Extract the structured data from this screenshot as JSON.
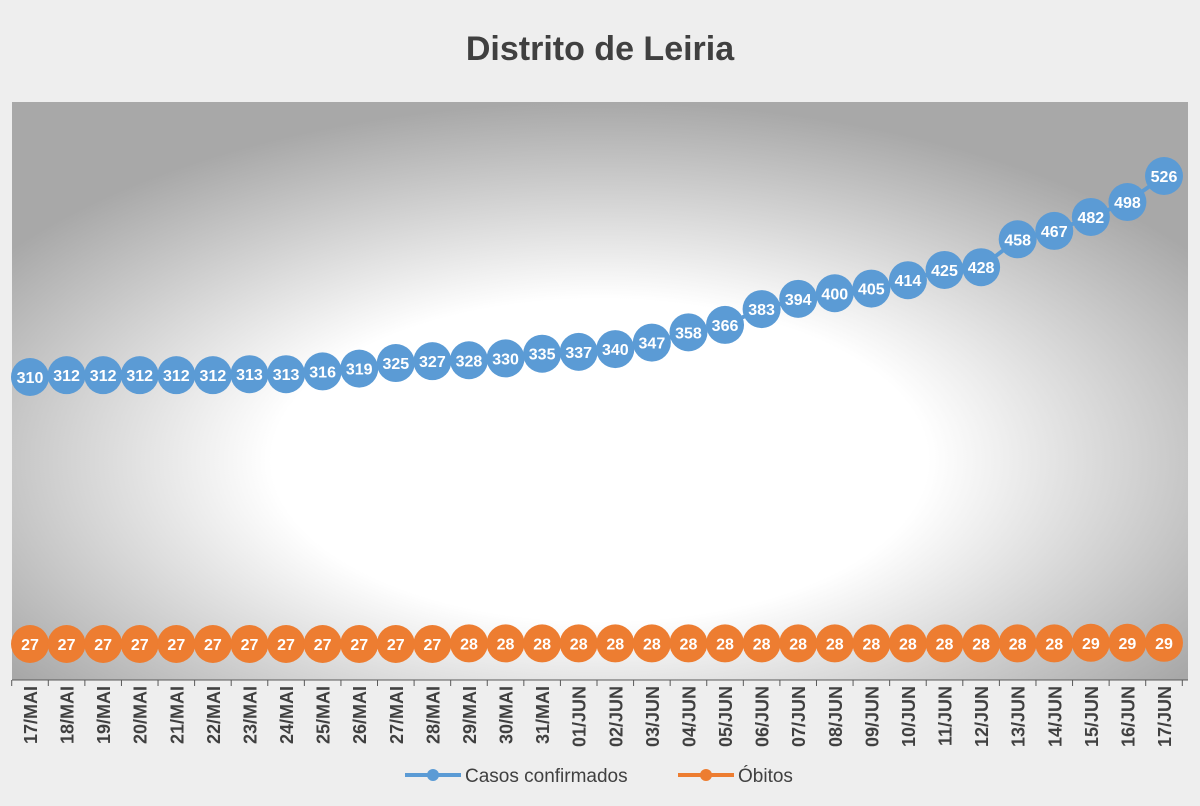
{
  "chart_data": {
    "type": "line",
    "title": "Distrito de Leiria",
    "categories": [
      "17/MAI",
      "18/MAI",
      "19/MAI",
      "20/MAI",
      "21/MAI",
      "22/MAI",
      "23/MAI",
      "24/MAI",
      "25/MAI",
      "26/MAI",
      "27/MAI",
      "28/MAI",
      "29/MAI",
      "30/MAI",
      "31/MAI",
      "01/JUN",
      "02/JUN",
      "03/JUN",
      "04/JUN",
      "05/JUN",
      "06/JUN",
      "07/JUN",
      "08/JUN",
      "09/JUN",
      "10/JUN",
      "11/JUN",
      "12/JUN",
      "13/JUN",
      "14/JUN",
      "15/JUN",
      "16/JUN",
      "17/JUN"
    ],
    "series": [
      {
        "name": "Casos confirmados",
        "color": "#5b9bd5",
        "values": [
          310,
          312,
          312,
          312,
          312,
          312,
          313,
          313,
          316,
          319,
          325,
          327,
          328,
          330,
          335,
          337,
          340,
          347,
          358,
          366,
          383,
          394,
          400,
          405,
          414,
          425,
          428,
          458,
          467,
          482,
          498,
          526
        ]
      },
      {
        "name": "Óbitos",
        "color": "#ed7d31",
        "values": [
          27,
          27,
          27,
          27,
          27,
          27,
          27,
          27,
          27,
          27,
          27,
          27,
          28,
          28,
          28,
          28,
          28,
          28,
          28,
          28,
          28,
          28,
          28,
          28,
          28,
          28,
          28,
          28,
          28,
          29,
          29,
          29
        ]
      }
    ],
    "data_labels": true,
    "legend": "bottom",
    "grid": false,
    "axis_label_rotation": "vertical"
  }
}
